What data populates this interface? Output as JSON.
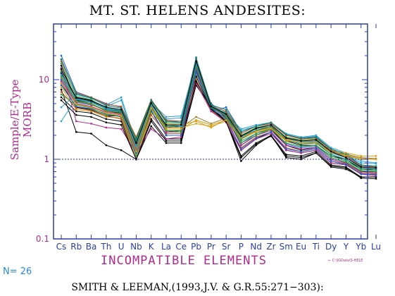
{
  "chart_data": {
    "type": "line",
    "title": "MT. ST. HELENS ANDESITES:",
    "xlabel": "INCOMPATIBLE ELEMENTS",
    "ylabel": "Sample/E-Type MORB",
    "yscale": "log",
    "ylim": [
      0.1,
      50
    ],
    "yticks": [
      "0.1",
      "1",
      "10"
    ],
    "reference_line": 1,
    "categories": [
      "Cs",
      "Rb",
      "Ba",
      "Th",
      "U",
      "Nb",
      "K",
      "La",
      "Ce",
      "Pb",
      "Pr",
      "Sr",
      "P",
      "Nd",
      "Zr",
      "Sm",
      "Eu",
      "Ti",
      "Dy",
      "Y",
      "Yb",
      "Lu"
    ],
    "series": [
      {
        "color": "#000000",
        "values": [
          7.5,
          2.2,
          2.1,
          1.5,
          1.3,
          1.0,
          2.6,
          1.6,
          1.6,
          8.5,
          4.5,
          3.0,
          0.95,
          1.5,
          2.0,
          1.05,
          1.0,
          1.2,
          0.8,
          0.75,
          0.6,
          0.6
        ]
      },
      {
        "color": "#000000",
        "values": [
          12.0,
          6.0,
          5.5,
          4.5,
          4.0,
          1.3,
          4.5,
          2.2,
          2.3,
          15.0,
          5.0,
          3.5,
          1.5,
          2.0,
          2.4,
          1.5,
          1.3,
          1.4,
          1.0,
          0.9,
          0.7,
          0.7
        ]
      },
      {
        "color": "#000000",
        "values": [
          9.0,
          4.5,
          4.2,
          3.5,
          3.5,
          1.1,
          4.0,
          2.0,
          2.0,
          13.0,
          4.8,
          3.3,
          1.3,
          1.8,
          2.2,
          1.3,
          1.2,
          1.3,
          0.9,
          0.85,
          0.65,
          0.65
        ]
      },
      {
        "color": "#000000",
        "values": [
          15.0,
          5.5,
          5.0,
          4.0,
          3.8,
          1.5,
          5.0,
          2.5,
          2.6,
          16.0,
          4.6,
          3.6,
          1.8,
          2.3,
          2.6,
          1.7,
          1.5,
          1.5,
          1.1,
          1.0,
          0.75,
          0.75
        ]
      },
      {
        "color": "#000000",
        "values": [
          6.0,
          4.0,
          3.8,
          3.2,
          3.0,
          1.0,
          3.2,
          1.8,
          1.8,
          11.0,
          4.2,
          3.1,
          1.1,
          1.6,
          2.0,
          1.15,
          1.1,
          1.25,
          0.85,
          0.8,
          0.6,
          0.6
        ]
      },
      {
        "color": "#1f5fd0",
        "values": [
          20.0,
          7.0,
          6.0,
          5.0,
          4.5,
          1.8,
          5.5,
          3.0,
          3.0,
          19.0,
          4.0,
          4.5,
          2.2,
          2.6,
          2.8,
          2.0,
          1.8,
          1.9,
          1.3,
          1.1,
          0.85,
          0.8
        ]
      },
      {
        "color": "#1f5fd0",
        "values": [
          10.0,
          5.2,
          4.8,
          4.2,
          3.9,
          1.4,
          4.6,
          2.4,
          2.4,
          14.0,
          4.7,
          3.4,
          1.6,
          2.1,
          2.5,
          1.55,
          1.4,
          1.45,
          1.05,
          0.92,
          0.72,
          0.7
        ]
      },
      {
        "color": "#30a0d0",
        "values": [
          4.5,
          6.5,
          5.8,
          4.8,
          6.0,
          1.6,
          5.2,
          3.4,
          3.5,
          17.0,
          4.9,
          3.7,
          2.4,
          2.7,
          2.9,
          2.1,
          1.9,
          2.0,
          1.4,
          1.2,
          0.95,
          0.9
        ]
      },
      {
        "color": "#30a0d0",
        "values": [
          3.0,
          5.8,
          5.2,
          4.6,
          5.5,
          1.5,
          5.0,
          3.2,
          3.3,
          16.5,
          4.6,
          3.5,
          2.3,
          2.6,
          2.8,
          2.0,
          1.85,
          1.95,
          1.35,
          1.15,
          0.9,
          0.88
        ]
      },
      {
        "color": "#d4a017",
        "values": [
          13.0,
          5.0,
          4.6,
          3.8,
          3.4,
          1.2,
          4.2,
          2.8,
          2.7,
          3.0,
          2.5,
          3.2,
          2.0,
          2.4,
          2.6,
          1.9,
          1.7,
          1.7,
          1.3,
          1.2,
          1.1,
          1.1
        ]
      },
      {
        "color": "#d4a017",
        "values": [
          8.0,
          4.2,
          4.0,
          3.4,
          3.3,
          1.1,
          3.8,
          2.6,
          2.5,
          2.8,
          2.6,
          3.0,
          1.8,
          2.2,
          2.4,
          1.7,
          1.6,
          1.6,
          1.2,
          1.1,
          1.0,
          1.0
        ]
      },
      {
        "color": "#2f9e44",
        "values": [
          16.0,
          6.2,
          5.6,
          4.4,
          4.2,
          1.7,
          5.4,
          2.9,
          2.8,
          17.5,
          4.4,
          3.9,
          2.0,
          2.5,
          2.7,
          1.9,
          1.75,
          1.8,
          1.25,
          1.05,
          0.8,
          0.78
        ]
      },
      {
        "color": "#2f9e44",
        "values": [
          11.0,
          5.4,
          5.0,
          4.1,
          3.9,
          1.3,
          4.7,
          2.3,
          2.3,
          12.0,
          4.3,
          3.3,
          1.7,
          2.1,
          2.4,
          1.6,
          1.45,
          1.5,
          1.1,
          0.95,
          0.75,
          0.72
        ]
      },
      {
        "color": "#c05020",
        "values": [
          17.0,
          6.8,
          6.0,
          4.9,
          4.6,
          1.9,
          5.6,
          3.1,
          3.0,
          18.0,
          4.7,
          4.0,
          2.1,
          2.6,
          2.8,
          2.0,
          1.8,
          1.85,
          1.3,
          1.1,
          0.82,
          0.8
        ]
      },
      {
        "color": "#c05020",
        "values": [
          7.0,
          4.4,
          4.1,
          3.5,
          3.2,
          1.0,
          3.6,
          2.1,
          2.1,
          10.0,
          4.1,
          3.0,
          1.4,
          1.9,
          2.2,
          1.4,
          1.25,
          1.35,
          0.95,
          0.88,
          0.68,
          0.66
        ]
      },
      {
        "color": "#b02a8f",
        "values": [
          14.0,
          3.0,
          2.8,
          2.5,
          2.4,
          1.2,
          2.4,
          1.8,
          1.9,
          9.0,
          4.0,
          2.9,
          1.3,
          1.8,
          2.1,
          1.3,
          1.2,
          1.3,
          0.9,
          0.85,
          0.65,
          0.62
        ]
      },
      {
        "color": "#b02a8f",
        "values": [
          9.5,
          5.0,
          4.6,
          3.9,
          3.6,
          1.3,
          4.4,
          2.2,
          2.2,
          13.5,
          4.5,
          3.4,
          1.5,
          2.0,
          2.3,
          1.5,
          1.35,
          1.4,
          1.0,
          0.9,
          0.7,
          0.68
        ]
      },
      {
        "color": "#9a7b2e",
        "values": [
          10.5,
          5.3,
          4.9,
          4.0,
          3.7,
          1.4,
          4.6,
          2.5,
          2.5,
          3.4,
          2.8,
          3.3,
          1.9,
          2.3,
          2.5,
          1.8,
          1.65,
          1.65,
          1.25,
          1.15,
          1.05,
          1.02
        ]
      },
      {
        "color": "#0a7f6f",
        "values": [
          18.0,
          6.6,
          5.9,
          4.7,
          4.4,
          1.8,
          5.5,
          3.0,
          2.9,
          18.5,
          4.8,
          4.2,
          2.2,
          2.6,
          2.9,
          2.05,
          1.85,
          1.9,
          1.35,
          1.15,
          0.85,
          0.82
        ]
      },
      {
        "color": "#0a7f6f",
        "values": [
          12.5,
          5.6,
          5.2,
          4.3,
          4.0,
          1.5,
          4.9,
          2.6,
          2.6,
          15.5,
          4.6,
          3.6,
          1.8,
          2.3,
          2.6,
          1.75,
          1.55,
          1.6,
          1.15,
          1.0,
          0.78,
          0.75
        ]
      },
      {
        "color": "#000000",
        "values": [
          5.5,
          3.6,
          3.4,
          2.9,
          2.7,
          1.0,
          3.0,
          1.7,
          1.7,
          9.5,
          4.3,
          2.95,
          1.05,
          1.55,
          1.95,
          1.1,
          1.05,
          1.2,
          0.82,
          0.78,
          0.58,
          0.57
        ]
      },
      {
        "color": "#1f5fd0",
        "values": [
          8.5,
          4.6,
          4.3,
          3.7,
          3.4,
          1.2,
          4.1,
          2.0,
          2.0,
          12.5,
          4.4,
          3.2,
          1.35,
          1.85,
          2.2,
          1.35,
          1.25,
          1.35,
          0.95,
          0.86,
          0.66,
          0.64
        ]
      },
      {
        "color": "#2f9e44",
        "values": [
          6.5,
          4.8,
          4.4,
          3.6,
          3.5,
          1.1,
          4.3,
          2.3,
          2.2,
          14.5,
          4.5,
          3.5,
          1.6,
          2.0,
          2.4,
          1.6,
          1.45,
          1.5,
          1.05,
          0.92,
          0.72,
          0.7
        ]
      },
      {
        "color": "#30a0d0",
        "values": [
          11.5,
          5.7,
          5.3,
          4.4,
          4.1,
          1.45,
          4.8,
          2.7,
          2.6,
          16.0,
          4.7,
          3.8,
          1.9,
          2.4,
          2.7,
          1.85,
          1.65,
          1.7,
          1.2,
          1.05,
          0.8,
          0.77
        ]
      },
      {
        "color": "#d4a017",
        "values": [
          9.0,
          4.9,
          4.5,
          3.8,
          3.5,
          1.25,
          4.4,
          2.4,
          2.4,
          3.1,
          2.7,
          3.1,
          1.85,
          2.25,
          2.45,
          1.75,
          1.6,
          1.62,
          1.22,
          1.12,
          1.03,
          1.0
        ]
      },
      {
        "color": "#000000",
        "values": [
          13.5,
          5.9,
          5.4,
          4.5,
          4.2,
          1.6,
          5.1,
          2.7,
          2.7,
          17.0,
          4.6,
          3.7,
          1.95,
          2.45,
          2.7,
          1.85,
          1.7,
          1.75,
          1.25,
          1.05,
          0.8,
          0.78
        ]
      }
    ],
    "grid": false,
    "legend": "none"
  },
  "labels": {
    "n_label": "N= 26",
    "tiny_label": "← C:\\IGData\\S-HELE",
    "citation": "SMITH  &  LEEMAN,(1993,J.V. & G.R.55:271−303):"
  }
}
